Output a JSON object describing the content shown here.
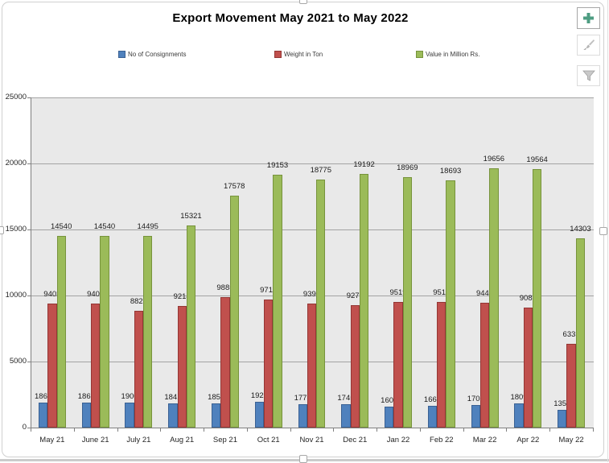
{
  "chart_data": {
    "type": "bar",
    "title": "Export Movement May 2021 to May 2022",
    "categories": [
      "May 21",
      "June 21",
      "July 21",
      "Aug 21",
      "Sep 21",
      "Oct 21",
      "Nov 21",
      "Dec 21",
      "Jan 22",
      "Feb 22",
      "Mar 22",
      "Apr 22",
      "May 22"
    ],
    "series": [
      {
        "name": "No of Consignments",
        "color": "#4f81bd",
        "border": "#3a6193",
        "label_gap": 2,
        "values": [
          1862,
          1862,
          1900,
          1841,
          1856,
          1925,
          1778,
          1745,
          1607,
          1662,
          1705,
          1809,
          1356
        ]
      },
      {
        "name": "Weight in Ton",
        "color": "#c0504d",
        "border": "#943634",
        "label_gap": 6,
        "values": [
          9403,
          9403,
          8825,
          9214,
          9885,
          9712,
          9397,
          9279,
          9519,
          9518,
          9444,
          9086,
          6333
        ]
      },
      {
        "name": "Value in Million Rs.",
        "color": "#9bbb59",
        "border": "#77933c",
        "label_gap": 6,
        "values": [
          14540,
          14540,
          14495,
          15321,
          17578,
          19153,
          18775,
          19192,
          18969,
          18693,
          19656,
          19564,
          14303
        ]
      }
    ],
    "ylim": [
      0,
      25000
    ],
    "ytick_step": 5000,
    "ytick_labels": [
      "0",
      "5000",
      "10000",
      "15000",
      "20000",
      "25000"
    ],
    "grid": true,
    "legend_position": "top",
    "plot_bg": "#e9e9e9",
    "gridline_color": "#a3a3a3",
    "axis_color": "#7f7f7f"
  },
  "toolbar": {
    "buttons": [
      {
        "name": "add-chart-element",
        "icon": "plus-icon",
        "icon_color": "#4e9d82"
      },
      {
        "name": "chart-styles",
        "icon": "paintbrush-icon",
        "icon_color": "#bdbdbd"
      },
      {
        "name": "chart-filters",
        "icon": "funnel-icon",
        "icon_color": "#c3c3c3"
      }
    ]
  }
}
